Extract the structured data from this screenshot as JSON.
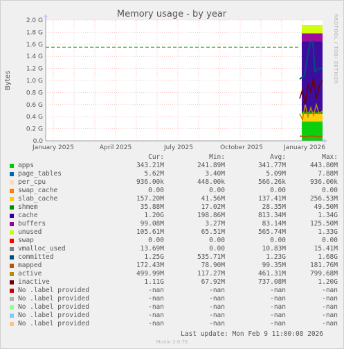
{
  "chart_data": {
    "type": "area",
    "title": "Memory usage - by year",
    "ylabel": "Bytes",
    "side_label": "RRDTOOL / TOBI OETIKER",
    "x_ticks": [
      "January 2025",
      "April 2025",
      "July 2025",
      "October 2025",
      "January 2026"
    ],
    "y_ticks": [
      "0.0",
      "0.2 G",
      "0.4 G",
      "0.6 G",
      "0.8 G",
      "1.0 G",
      "1.2 G",
      "1.4 G",
      "1.6 G",
      "1.8 G",
      "2.0 G"
    ],
    "ylim": [
      0,
      2.0
    ],
    "y_unit": "G",
    "grid": true,
    "reference_line_value": 1.55,
    "columns": [
      "Cur:",
      "Min:",
      "Avg:",
      "Max:"
    ],
    "legend": [
      {
        "name": "apps",
        "color": "#00cc00",
        "cur": "343.21M",
        "min": "241.89M",
        "avg": "341.77M",
        "max": "443.80M"
      },
      {
        "name": "page_tables",
        "color": "#0066b3",
        "cur": "5.62M",
        "min": "3.40M",
        "avg": "5.09M",
        "max": "7.88M"
      },
      {
        "name": "per_cpu",
        "color": "#ffd9b3",
        "cur": "936.00k",
        "min": "448.00k",
        "avg": "566.26k",
        "max": "936.00k"
      },
      {
        "name": "swap_cache",
        "color": "#ff8000",
        "cur": "0.00",
        "min": "0.00",
        "avg": "0.00",
        "max": "0.00"
      },
      {
        "name": "slab_cache",
        "color": "#ffcc00",
        "cur": "157.20M",
        "min": "41.56M",
        "avg": "137.41M",
        "max": "256.53M"
      },
      {
        "name": "shmem",
        "color": "#008f00",
        "cur": "35.88M",
        "min": "17.02M",
        "avg": "28.35M",
        "max": "49.50M"
      },
      {
        "name": "cache",
        "color": "#330099",
        "cur": "1.20G",
        "min": "198.86M",
        "avg": "813.34M",
        "max": "1.34G"
      },
      {
        "name": "buffers",
        "color": "#990099",
        "cur": "99.08M",
        "min": "3.27M",
        "avg": "83.14M",
        "max": "125.50M"
      },
      {
        "name": "unused",
        "color": "#ccff00",
        "cur": "105.61M",
        "min": "65.51M",
        "avg": "565.74M",
        "max": "1.33G"
      },
      {
        "name": "swap",
        "color": "#ff0000",
        "cur": "0.00",
        "min": "0.00",
        "avg": "0.00",
        "max": "0.00"
      },
      {
        "name": "vmalloc_used",
        "color": "#808080",
        "cur": "13.69M",
        "min": "0.00",
        "avg": "10.83M",
        "max": "15.41M"
      },
      {
        "name": "committed",
        "color": "#004d80",
        "cur": "1.25G",
        "min": "535.71M",
        "avg": "1.23G",
        "max": "1.68G"
      },
      {
        "name": "mapped",
        "color": "#b35a00",
        "cur": "172.43M",
        "min": "78.90M",
        "avg": "99.35M",
        "max": "181.76M"
      },
      {
        "name": "active",
        "color": "#b38f00",
        "cur": "499.99M",
        "min": "117.27M",
        "avg": "461.31M",
        "max": "799.68M"
      },
      {
        "name": "inactive",
        "color": "#6b0000",
        "cur": "1.11G",
        "min": "67.92M",
        "avg": "737.08M",
        "max": "1.20G"
      },
      {
        "name": "No .label provided",
        "color": "#c80000",
        "cur": "-nan",
        "min": "-nan",
        "avg": "-nan",
        "max": "-nan"
      },
      {
        "name": "No .label provided",
        "color": "#b3b3b3",
        "cur": "-nan",
        "min": "-nan",
        "avg": "-nan",
        "max": "-nan"
      },
      {
        "name": "No .label provided",
        "color": "#8fff8f",
        "cur": "-nan",
        "min": "-nan",
        "avg": "-nan",
        "max": "-nan"
      },
      {
        "name": "No .label provided",
        "color": "#80c9ff",
        "cur": "-nan",
        "min": "-nan",
        "avg": "-nan",
        "max": "-nan"
      },
      {
        "name": "No .label provided",
        "color": "#ffc080",
        "cur": "-nan",
        "min": "-nan",
        "avg": "-nan",
        "max": "-nan"
      }
    ]
  },
  "footer": {
    "last_update": "Last update: Mon Feb  9 11:00:08 2026",
    "version": "Munin 2.0.76"
  }
}
